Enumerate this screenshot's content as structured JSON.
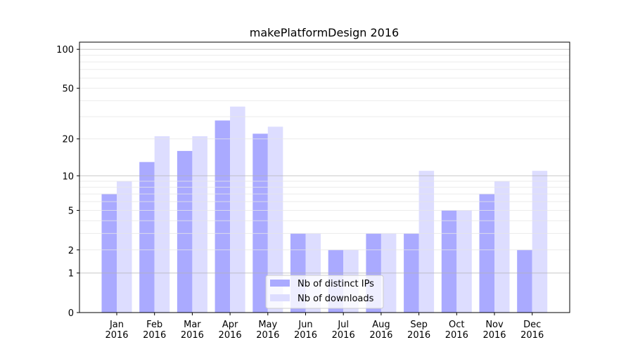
{
  "chart_data": {
    "type": "bar",
    "title": "makePlatformDesign 2016",
    "xlabel": "",
    "ylabel": "",
    "yscale": "symlog (log10(1+y))",
    "ylim": [
      0,
      110
    ],
    "yticks": [
      0,
      1,
      2,
      5,
      10,
      20,
      50,
      100
    ],
    "ytick_labels": [
      "0",
      "1",
      "2",
      "5",
      "10",
      "20",
      "50",
      "100"
    ],
    "grid": true,
    "legend_position": "bottom-center",
    "categories": [
      "Jan\n2016",
      "Feb\n2016",
      "Mar\n2016",
      "Apr\n2016",
      "May\n2016",
      "Jun\n2016",
      "Jul\n2016",
      "Aug\n2016",
      "Sep\n2016",
      "Oct\n2016",
      "Nov\n2016",
      "Dec\n2016"
    ],
    "series": [
      {
        "name": "Nb of distinct IPs",
        "color": "#aaaaff",
        "values": [
          7,
          13,
          16,
          28,
          22,
          3,
          2,
          3,
          3,
          5,
          7,
          2
        ]
      },
      {
        "name": "Nb of downloads",
        "color": "#ddddff",
        "values": [
          9,
          21,
          21,
          36,
          25,
          3,
          2,
          3,
          11,
          5,
          9,
          11
        ]
      }
    ]
  }
}
